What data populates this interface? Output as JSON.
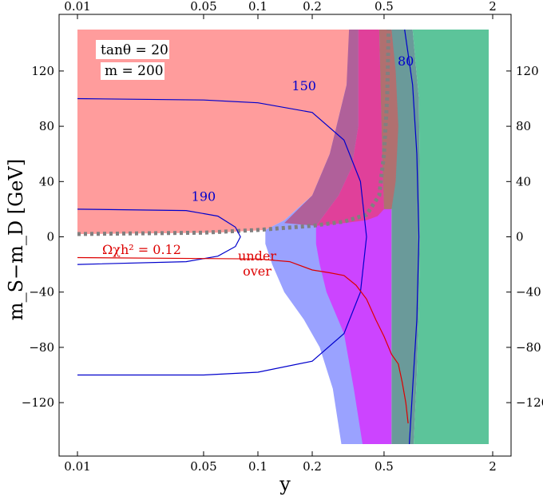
{
  "chart_data": {
    "type": "contour-region",
    "xlabel": "y",
    "ylabel": "m_S−m_D [GeV]",
    "xscale": "log",
    "xlim": [
      0.01,
      2.0
    ],
    "ylim": [
      -150,
      150
    ],
    "x_ticks": [
      {
        "value": 0.01,
        "label": "0.01"
      },
      {
        "value": 0.05,
        "label": "0.05"
      },
      {
        "value": 0.1,
        "label": "0.1"
      },
      {
        "value": 0.2,
        "label": "0.2"
      },
      {
        "value": 0.5,
        "label": "0.5"
      },
      {
        "value": 2.0,
        "label": "2"
      }
    ],
    "y_ticks": [
      {
        "value": 120,
        "label": "120"
      },
      {
        "value": 80,
        "label": "80"
      },
      {
        "value": 40,
        "label": "40"
      },
      {
        "value": 0,
        "label": "0"
      },
      {
        "value": -40,
        "label": "−40"
      },
      {
        "value": -80,
        "label": "−80"
      },
      {
        "value": -120,
        "label": "−120"
      }
    ],
    "parameters": [
      {
        "name": "tanθ",
        "text": "tanθ = 20"
      },
      {
        "name": "m",
        "text": "m = 200"
      }
    ],
    "regions": [
      {
        "id": "pink",
        "color": "#ff9c9c",
        "points": [
          [
            0.01,
            150
          ],
          [
            0.33,
            150
          ],
          [
            0.31,
            110
          ],
          [
            0.25,
            60
          ],
          [
            0.2,
            30
          ],
          [
            0.14,
            12
          ],
          [
            0.11,
            5
          ],
          [
            0.06,
            3
          ],
          [
            0.01,
            2
          ]
        ]
      },
      {
        "id": "blue",
        "color": "#9aa2ff",
        "points": [
          [
            0.33,
            150
          ],
          [
            0.48,
            150
          ],
          [
            0.48,
            10
          ],
          [
            0.45,
            -60
          ],
          [
            0.41,
            -100
          ],
          [
            0.38,
            -150
          ],
          [
            0.29,
            -150
          ],
          [
            0.26,
            -110
          ],
          [
            0.22,
            -80
          ],
          [
            0.18,
            -60
          ],
          [
            0.14,
            -40
          ],
          [
            0.12,
            -20
          ],
          [
            0.11,
            -5
          ],
          [
            0.11,
            5
          ],
          [
            0.14,
            12
          ],
          [
            0.2,
            30
          ],
          [
            0.25,
            60
          ],
          [
            0.31,
            110
          ]
        ]
      },
      {
        "id": "magenta",
        "color": "#cc44ff",
        "points": [
          [
            0.48,
            150
          ],
          [
            0.55,
            150
          ],
          [
            0.55,
            -150
          ],
          [
            0.38,
            -150
          ],
          [
            0.34,
            -110
          ],
          [
            0.3,
            -70
          ],
          [
            0.24,
            -40
          ],
          [
            0.22,
            -20
          ],
          [
            0.21,
            -5
          ],
          [
            0.21,
            8
          ],
          [
            0.3,
            20
          ],
          [
            0.4,
            40
          ],
          [
            0.46,
            80
          ]
        ]
      },
      {
        "id": "teal-band",
        "color": "#6a9a9a",
        "points": [
          [
            0.55,
            150
          ],
          [
            0.72,
            150
          ],
          [
            0.78,
            100
          ],
          [
            0.79,
            40
          ],
          [
            0.79,
            0
          ],
          [
            0.78,
            -50
          ],
          [
            0.76,
            -100
          ],
          [
            0.73,
            -150
          ],
          [
            0.55,
            -150
          ]
        ]
      },
      {
        "id": "green",
        "color": "#5cc49a",
        "points": [
          [
            0.72,
            150
          ],
          [
            1.9,
            150
          ],
          [
            1.9,
            -150
          ],
          [
            0.73,
            -150
          ],
          [
            0.76,
            -100
          ],
          [
            0.78,
            -50
          ],
          [
            0.79,
            0
          ],
          [
            0.79,
            40
          ],
          [
            0.78,
            100
          ]
        ]
      },
      {
        "id": "overlap-purple",
        "color": "#b0609a",
        "points": [
          [
            0.32,
            150
          ],
          [
            0.36,
            150
          ],
          [
            0.36,
            80
          ],
          [
            0.33,
            50
          ],
          [
            0.28,
            30
          ],
          [
            0.21,
            8
          ],
          [
            0.14,
            10
          ],
          [
            0.2,
            30
          ],
          [
            0.25,
            60
          ],
          [
            0.31,
            110
          ]
        ]
      },
      {
        "id": "overlap-pink",
        "color": "#e0409a",
        "points": [
          [
            0.36,
            150
          ],
          [
            0.47,
            150
          ],
          [
            0.48,
            100
          ],
          [
            0.49,
            50
          ],
          [
            0.5,
            20
          ],
          [
            0.46,
            15
          ],
          [
            0.4,
            12
          ],
          [
            0.3,
            10
          ],
          [
            0.21,
            8
          ],
          [
            0.28,
            30
          ],
          [
            0.33,
            50
          ],
          [
            0.36,
            80
          ]
        ]
      },
      {
        "id": "overlap-brown",
        "color": "#b07070",
        "points": [
          [
            0.47,
            150
          ],
          [
            0.55,
            150
          ],
          [
            0.58,
            120
          ],
          [
            0.6,
            80
          ],
          [
            0.58,
            40
          ],
          [
            0.55,
            20
          ],
          [
            0.5,
            20
          ],
          [
            0.49,
            50
          ],
          [
            0.48,
            100
          ]
        ]
      }
    ],
    "boundary_dotted": {
      "color": "#808080",
      "points": [
        [
          0.01,
          2
        ],
        [
          0.05,
          3
        ],
        [
          0.1,
          5
        ],
        [
          0.2,
          8
        ],
        [
          0.3,
          11
        ],
        [
          0.4,
          16
        ],
        [
          0.47,
          30
        ],
        [
          0.5,
          60
        ],
        [
          0.52,
          100
        ],
        [
          0.53,
          150
        ]
      ]
    },
    "contours": [
      {
        "label": "150",
        "color": "#0000cc",
        "label_at": [
          0.18,
          106
        ],
        "points": [
          [
            0.01,
            100
          ],
          [
            0.05,
            99
          ],
          [
            0.1,
            97
          ],
          [
            0.2,
            90
          ],
          [
            0.3,
            70
          ],
          [
            0.37,
            40
          ],
          [
            0.4,
            0
          ],
          [
            0.37,
            -40
          ],
          [
            0.3,
            -70
          ],
          [
            0.2,
            -90
          ],
          [
            0.1,
            -98
          ],
          [
            0.05,
            -100
          ],
          [
            0.01,
            -100
          ]
        ]
      },
      {
        "label": "190",
        "color": "#0000cc",
        "label_at": [
          0.05,
          26
        ],
        "points": [
          [
            0.01,
            20
          ],
          [
            0.04,
            19
          ],
          [
            0.06,
            15
          ],
          [
            0.075,
            7
          ],
          [
            0.08,
            0
          ],
          [
            0.075,
            -7
          ],
          [
            0.06,
            -14
          ],
          [
            0.04,
            -18
          ],
          [
            0.01,
            -20
          ]
        ]
      },
      {
        "label": "80",
        "color": "#0000cc",
        "label_at": [
          0.66,
          124
        ],
        "points": [
          [
            0.65,
            150
          ],
          [
            0.72,
            110
          ],
          [
            0.76,
            60
          ],
          [
            0.78,
            0
          ],
          [
            0.76,
            -60
          ],
          [
            0.72,
            -110
          ],
          [
            0.69,
            -150
          ]
        ]
      }
    ],
    "relic_curve": {
      "label": "Ωχh² = 0.12",
      "label_above": "under",
      "label_below": "over",
      "color": "#dd0000",
      "points": [
        [
          0.01,
          -15
        ],
        [
          0.1,
          -16
        ],
        [
          0.15,
          -18
        ],
        [
          0.2,
          -24
        ],
        [
          0.25,
          -26
        ],
        [
          0.3,
          -28
        ],
        [
          0.35,
          -35
        ],
        [
          0.4,
          -45
        ],
        [
          0.45,
          -60
        ],
        [
          0.5,
          -72
        ],
        [
          0.55,
          -85
        ],
        [
          0.6,
          -92
        ],
        [
          0.63,
          -105
        ],
        [
          0.66,
          -120
        ],
        [
          0.68,
          -135
        ]
      ]
    }
  }
}
